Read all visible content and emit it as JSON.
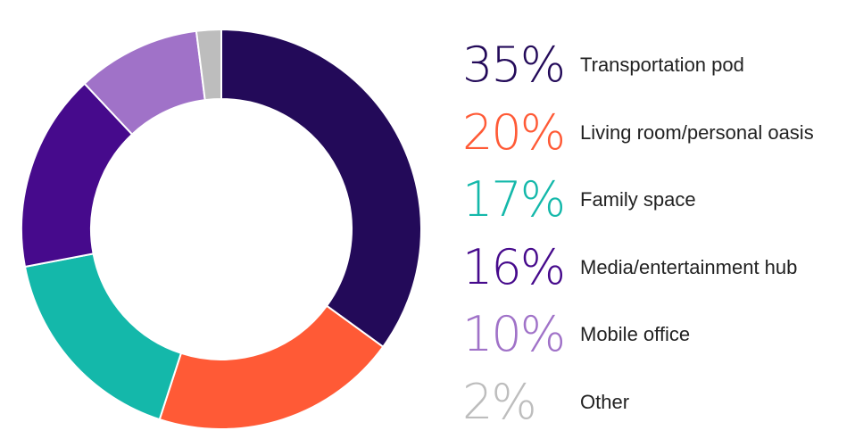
{
  "chart_data": {
    "type": "pie",
    "donut": true,
    "title": "",
    "categories": [
      "Transportation pod",
      "Living room/personal oasis",
      "Family space",
      "Media/entertainment hub",
      "Mobile office",
      "Other"
    ],
    "values": [
      35,
      20,
      17,
      16,
      10,
      2
    ],
    "value_labels": [
      "35%",
      "20%",
      "17%",
      "16%",
      "10%",
      "2%"
    ],
    "colors": [
      "#230a59",
      "#ff5a36",
      "#14b8aa",
      "#460a8c",
      "#a072c8",
      "#bdbdbd"
    ],
    "legend_position": "right"
  }
}
